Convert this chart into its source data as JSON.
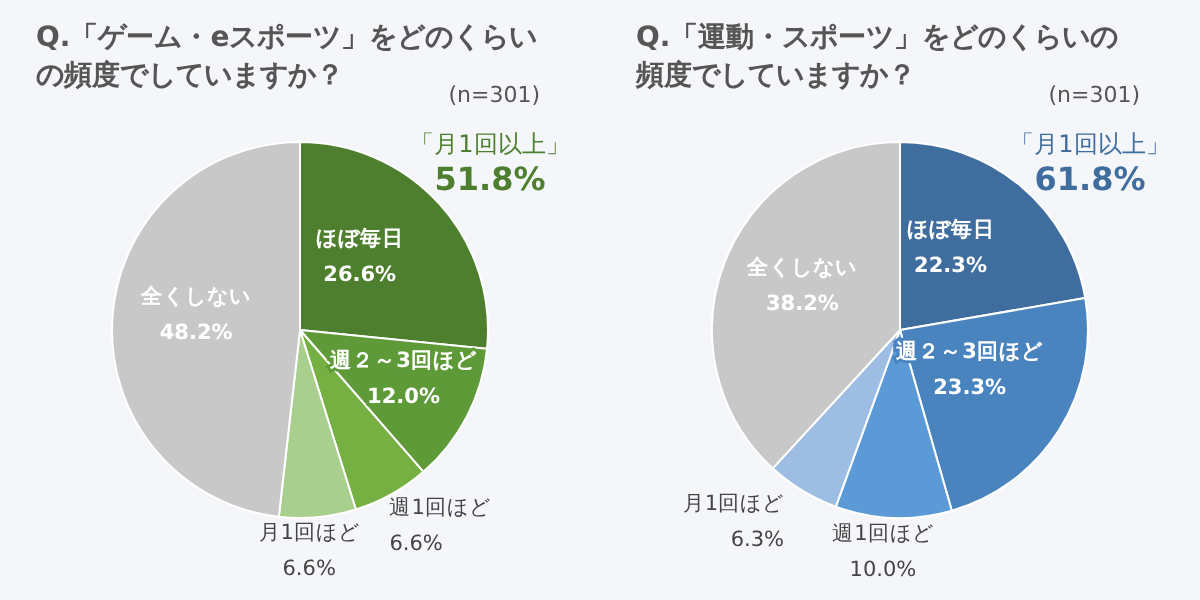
{
  "chart_data": [
    {
      "type": "pie",
      "title": "Q.「ゲーム・eスポーツ」をどのくらいの頻度でしていますか？",
      "subtitle": "(n=301)",
      "categories": [
        "ほぼ毎日",
        "週２～3回ほど",
        "週1回ほど",
        "月1回ほど",
        "全くしない"
      ],
      "values": [
        26.6,
        12.0,
        6.6,
        6.6,
        48.2
      ],
      "colors": [
        "#4e7f2e",
        "#5e9a38",
        "#76b043",
        "#a9cf8e",
        "#c8c8c8"
      ],
      "value_labels": [
        "26.6%",
        "12.0%",
        "6.6%",
        "6.6%",
        "48.2%"
      ],
      "annotations": [
        "「月1回以上」",
        "51.8%"
      ]
    },
    {
      "type": "pie",
      "title": "Q.「運動・スポーツ」をどのくらいの頻度でしていますか？",
      "subtitle": "(n=301)",
      "categories": [
        "ほぼ毎日",
        "週２～3回ほど",
        "週1回ほど",
        "月1回ほど",
        "全くしない"
      ],
      "values": [
        22.3,
        23.3,
        10.0,
        6.3,
        38.2
      ],
      "colors": [
        "#3f6e9e",
        "#4a84bf",
        "#5b9ad6",
        "#9dbde3",
        "#c8c8c8"
      ],
      "value_labels": [
        "22.3%",
        "23.3%",
        "10.0%",
        "6.3%",
        "38.2%"
      ],
      "annotations": [
        "「月1回以上」",
        "61.8%"
      ]
    }
  ]
}
